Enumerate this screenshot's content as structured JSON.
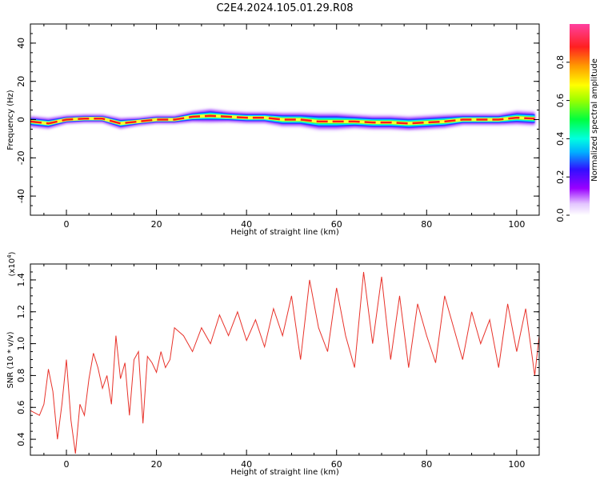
{
  "title": "C2E4.2024.105.01.29.R08",
  "chart_data": [
    {
      "type": "heatmap",
      "title": "C2E4.2024.105.01.29.R08",
      "xlabel": "Height of straight line (km)",
      "ylabel": "Frequency (Hz)",
      "xlim": [
        -8,
        105
      ],
      "ylim": [
        -50,
        50
      ],
      "xticks": [
        0,
        20,
        40,
        60,
        80,
        100
      ],
      "xtick_labels": [
        "0",
        "20",
        "40",
        "60",
        "80",
        "100"
      ],
      "yticks": [
        -40,
        -20,
        0,
        20,
        40
      ],
      "ytick_labels": [
        "-40",
        "-20",
        "0",
        "20",
        "40"
      ],
      "colorbar": {
        "label": "Normalized spectral amplitude",
        "range": [
          0.0,
          1.0
        ],
        "ticks": [
          0.0,
          0.2,
          0.4,
          0.6,
          0.8
        ],
        "tick_labels": [
          "0.0",
          "0.2",
          "0.4",
          "0.6",
          "0.8"
        ],
        "colormap": "hsv-like (white, violet, blue, cyan, green, yellow, orange, red, magenta)"
      },
      "ridge": {
        "description": "narrow high-amplitude band centred near 0 Hz along full height range",
        "x": [
          -8,
          -4,
          0,
          4,
          8,
          12,
          16,
          20,
          24,
          28,
          32,
          36,
          40,
          44,
          48,
          52,
          56,
          60,
          64,
          68,
          72,
          76,
          80,
          84,
          88,
          92,
          96,
          100,
          104
        ],
        "center_hz": [
          -1,
          -2,
          0,
          0.5,
          0.5,
          -2,
          -1,
          0,
          0,
          1.5,
          2,
          1.5,
          1,
          1,
          0,
          0,
          -1,
          -1,
          -1,
          -1.5,
          -1.5,
          -2,
          -1.5,
          -1,
          0,
          0,
          0,
          1,
          0.5
        ],
        "width_hz": [
          4,
          4,
          3,
          3,
          3,
          4,
          3,
          3,
          3,
          4,
          5,
          4,
          4,
          4,
          5,
          5,
          6,
          6,
          5,
          5,
          5,
          5,
          5,
          5,
          4,
          4,
          4,
          5,
          5
        ]
      }
    },
    {
      "type": "line",
      "xlabel": "Height of straight line (km)",
      "ylabel": "SNR (10 * v/v)",
      "multiplier_label": "(x10",
      "multiplier_exp": "4",
      "multiplier_close": ")",
      "xlim": [
        -8,
        105
      ],
      "ylim": [
        0.3,
        1.5
      ],
      "xticks": [
        0,
        20,
        40,
        60,
        80,
        100
      ],
      "xtick_labels": [
        "0",
        "20",
        "40",
        "60",
        "80",
        "100"
      ],
      "yticks": [
        0.4,
        0.6,
        0.8,
        1.0,
        1.2,
        1.4
      ],
      "ytick_labels": [
        "0.4",
        "0.6",
        "0.8",
        "1.0",
        "1.2",
        "1.4"
      ],
      "series": [
        {
          "color": "#e8322a",
          "x": [
            -8,
            -6,
            -5,
            -4,
            -3,
            -2,
            -1,
            0,
            1,
            2,
            3,
            4,
            5,
            6,
            7,
            8,
            9,
            10,
            11,
            12,
            13,
            14,
            15,
            16,
            17,
            18,
            19,
            20,
            21,
            22,
            23,
            24,
            26,
            28,
            30,
            32,
            34,
            36,
            38,
            40,
            42,
            44,
            46,
            48,
            50,
            52,
            54,
            56,
            58,
            60,
            62,
            64,
            66,
            68,
            70,
            72,
            74,
            76,
            78,
            80,
            82,
            84,
            86,
            88,
            90,
            92,
            94,
            96,
            98,
            100,
            102,
            104,
            105
          ],
          "y": [
            0.58,
            0.55,
            0.62,
            0.84,
            0.7,
            0.4,
            0.62,
            0.9,
            0.52,
            0.31,
            0.62,
            0.55,
            0.78,
            0.94,
            0.85,
            0.72,
            0.8,
            0.62,
            1.05,
            0.78,
            0.88,
            0.55,
            0.9,
            0.95,
            0.5,
            0.92,
            0.88,
            0.82,
            0.95,
            0.85,
            0.9,
            1.1,
            1.05,
            0.95,
            1.1,
            1.0,
            1.18,
            1.05,
            1.2,
            1.02,
            1.15,
            0.98,
            1.22,
            1.05,
            1.3,
            0.9,
            1.4,
            1.1,
            0.95,
            1.35,
            1.05,
            0.85,
            1.45,
            1.0,
            1.42,
            0.9,
            1.3,
            0.85,
            1.25,
            1.05,
            0.88,
            1.3,
            1.1,
            0.9,
            1.2,
            1.0,
            1.15,
            0.85,
            1.25,
            0.95,
            1.22,
            0.8,
            1.05
          ]
        }
      ]
    }
  ]
}
